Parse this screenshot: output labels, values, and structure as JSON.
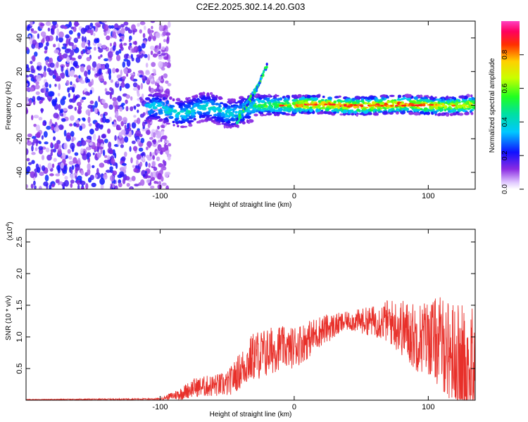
{
  "title": "C2E2.2025.302.14.20.G03",
  "chart_data": [
    {
      "type": "heatmap",
      "name": "spectrogram",
      "xlabel": "Height of straight line (km)",
      "ylabel": "Frequency (Hz)",
      "xlim": [
        -200,
        135
      ],
      "ylim": [
        -50,
        50
      ],
      "xticks": [
        -100,
        0,
        100
      ],
      "yticks": [
        -40,
        -20,
        0,
        20,
        40
      ],
      "colorbar": {
        "label": "Normalized spectral amplitude",
        "range": [
          0,
          1
        ],
        "ticks": [
          "0.0",
          "0.2",
          "0.4",
          "0.6",
          "0.8"
        ]
      },
      "features": [
        {
          "kind": "noise",
          "x_range": [
            -200,
            -93
          ],
          "y_range": [
            -50,
            50
          ],
          "amplitude": 0.2
        },
        {
          "kind": "ridge",
          "x_range": [
            -110,
            135
          ],
          "frequency_hz": 0,
          "spread_hz": 6,
          "amplitude_peak": 0.9
        },
        {
          "kind": "streak",
          "x": [
            -43,
            -28,
            -20
          ],
          "y": [
            -10,
            10,
            24
          ],
          "amplitude": 0.4
        }
      ]
    },
    {
      "type": "line",
      "name": "snr",
      "xlabel": "Height of straight line (km)",
      "ylabel": "SNR (10 * v/v)",
      "scale_label": "(x10",
      "scale_exp": "4",
      "xlim": [
        -200,
        135
      ],
      "ylim": [
        0,
        2.7
      ],
      "xticks": [
        -100,
        0,
        100
      ],
      "yticks": [
        0.5,
        1.0,
        1.5,
        2.0,
        2.5
      ],
      "ytick_labels": [
        "0.5",
        "1.0",
        "1.5",
        "2.0",
        "2.5"
      ],
      "color": "#e8302a",
      "envelope": {
        "x": [
          -200,
          -100,
          -85,
          -75,
          -50,
          -30,
          -20,
          -10,
          -5,
          0,
          10,
          20,
          40,
          60,
          70,
          80,
          90,
          100,
          110,
          120,
          135
        ],
        "mean": [
          0.01,
          0.02,
          0.1,
          0.2,
          0.25,
          0.7,
          0.75,
          0.85,
          0.8,
          0.85,
          0.95,
          1.1,
          1.25,
          1.25,
          1.25,
          1.15,
          1.0,
          1.0,
          0.9,
          0.7,
          0.5
        ],
        "amplitude": [
          0.005,
          0.01,
          0.1,
          0.15,
          0.2,
          0.4,
          0.4,
          0.35,
          0.3,
          0.35,
          0.3,
          0.25,
          0.15,
          0.25,
          0.35,
          0.45,
          0.55,
          0.6,
          0.75,
          0.85,
          0.95
        ]
      }
    }
  ],
  "tick_labels": {
    "x": [
      "-100",
      "0",
      "100"
    ],
    "y_top": [
      "-40",
      "-20",
      "0",
      "20",
      "40"
    ]
  }
}
